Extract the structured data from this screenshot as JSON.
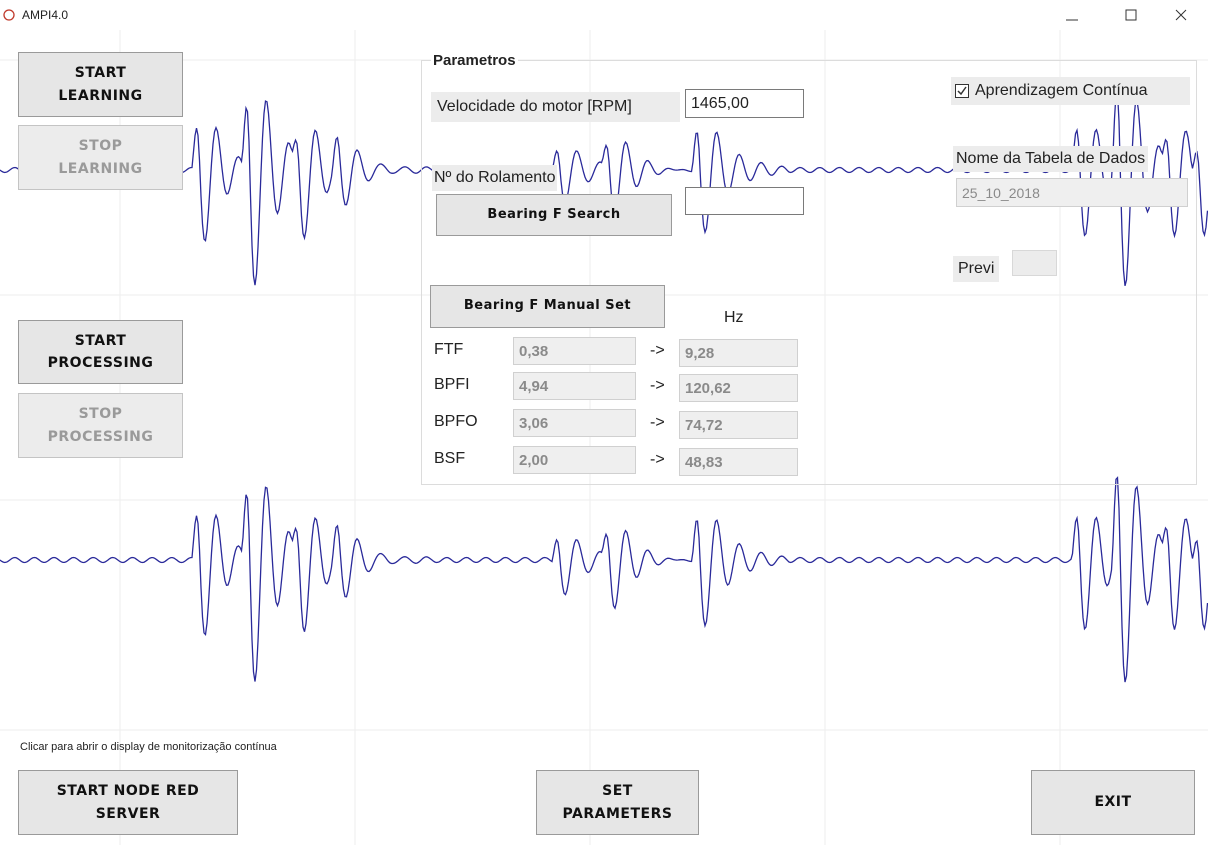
{
  "window": {
    "title": "AMPI4.0"
  },
  "buttons": {
    "start_learning": "START\nLEARNING",
    "stop_learning": "STOP\nLEARNING",
    "start_processing": "START\nPROCESSING",
    "stop_processing": "STOP\nPROCESSING",
    "start_node_red": "START NODE RED\nSERVER",
    "set_parameters": "SET\nPARAMETERS",
    "exit": "EXIT"
  },
  "parametros": {
    "title": "Parametros",
    "motor_speed": {
      "label": "Velocidade do motor [RPM]",
      "value": "1465,00"
    },
    "bearing_number": {
      "label": "Nº do Rolamento",
      "search_button": "Bearing F Search"
    },
    "manual_set_button": "Bearing F Manual Set",
    "hz_header": "Hz",
    "rows": [
      {
        "label": "FTF",
        "factor": "0,38",
        "arrow": "->",
        "hz": "9,28"
      },
      {
        "label": "BPFI",
        "factor": "4,94",
        "arrow": "->",
        "hz": "120,62"
      },
      {
        "label": "BPFO",
        "factor": "3,06",
        "arrow": "->",
        "hz": "74,72"
      },
      {
        "label": "BSF",
        "factor": "2,00",
        "arrow": "->",
        "hz": "48,83"
      }
    ],
    "continuous_learning": "Aprendizagem Contínua",
    "table_name": {
      "label": "Nome da Tabela de Dados",
      "value": "25_10_2018"
    },
    "previ": "Previ"
  },
  "hint": "Clicar para abrir o display de monitorização contínua"
}
